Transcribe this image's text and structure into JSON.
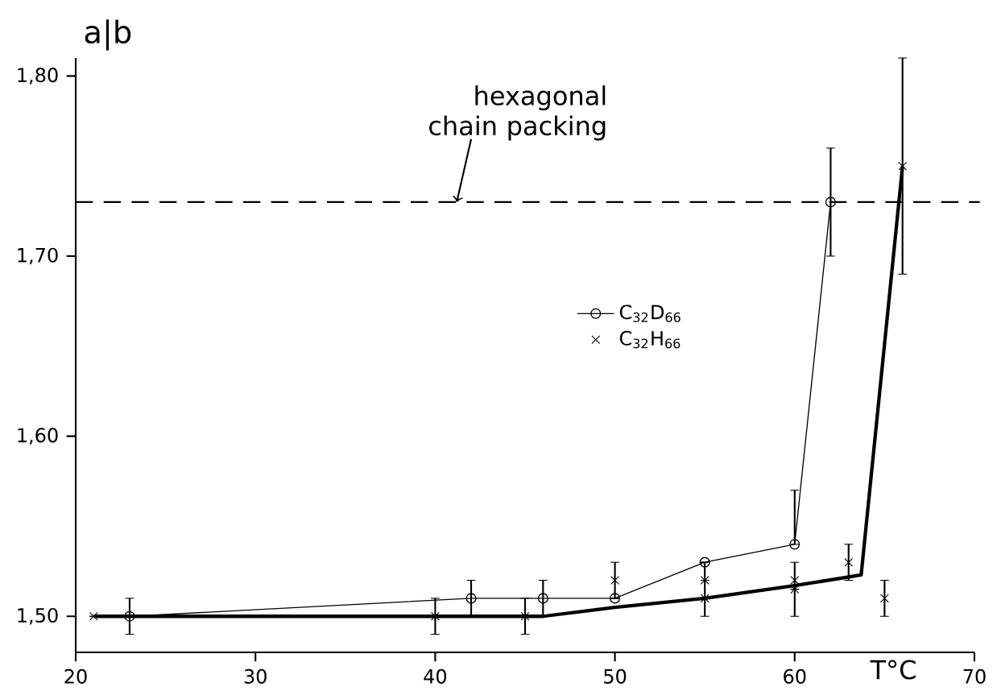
{
  "chart_data": {
    "type": "line",
    "xlabel": "T°C",
    "ylabel": "a|b",
    "xlim": [
      20,
      70
    ],
    "ylim": [
      1.48,
      1.81
    ],
    "xticks": [
      20,
      30,
      40,
      50,
      60,
      70
    ],
    "yticks": [
      {
        "value": 1.5,
        "label": "1,50"
      },
      {
        "value": 1.6,
        "label": "1,60"
      },
      {
        "value": 1.7,
        "label": "1,70"
      },
      {
        "value": 1.8,
        "label": "1,80"
      }
    ],
    "series": [
      {
        "name": "C$_{32}$D$_{66}$",
        "color": "#000000",
        "marker": "circle",
        "x": [
          23,
          42,
          46,
          50,
          55,
          60,
          62
        ],
        "values": [
          1.5,
          1.51,
          1.51,
          1.51,
          1.53,
          1.54,
          1.73
        ],
        "errors": [
          0.01,
          0.01,
          0.01,
          null,
          null,
          [
            1.54,
            1.57
          ],
          [
            1.7,
            1.76
          ]
        ]
      },
      {
        "name": "C$_{32}$H$_{66}$",
        "type": "scatter",
        "color": "#000000",
        "marker": "cross",
        "x": [
          21,
          40,
          45,
          50,
          55,
          55,
          60,
          60,
          63,
          65,
          66
        ],
        "values": [
          1.5,
          1.5,
          1.5,
          1.52,
          1.51,
          1.52,
          1.52,
          1.515,
          1.53,
          1.51,
          1.75
        ],
        "errors": [
          null,
          0.01,
          0.01,
          0.01,
          [
            1.5,
            1.53
          ],
          null,
          [
            1.5,
            1.53
          ],
          null,
          0.01,
          0.01,
          0.06
        ]
      },
      {
        "color": "#000000",
        "marker": "none",
        "x": [
          21,
          46,
          50,
          55,
          60,
          63.7,
          66
        ],
        "values": [
          1.5,
          1.5,
          1.505,
          1.51,
          1.517,
          1.523,
          1.75
        ]
      }
    ],
    "ref_lines": [
      {
        "axis": "y",
        "value": 1.73,
        "label": "hexagonal chain packing",
        "line_style": "dashed",
        "color": "#000000"
      }
    ],
    "legend": "right",
    "grid": false
  }
}
